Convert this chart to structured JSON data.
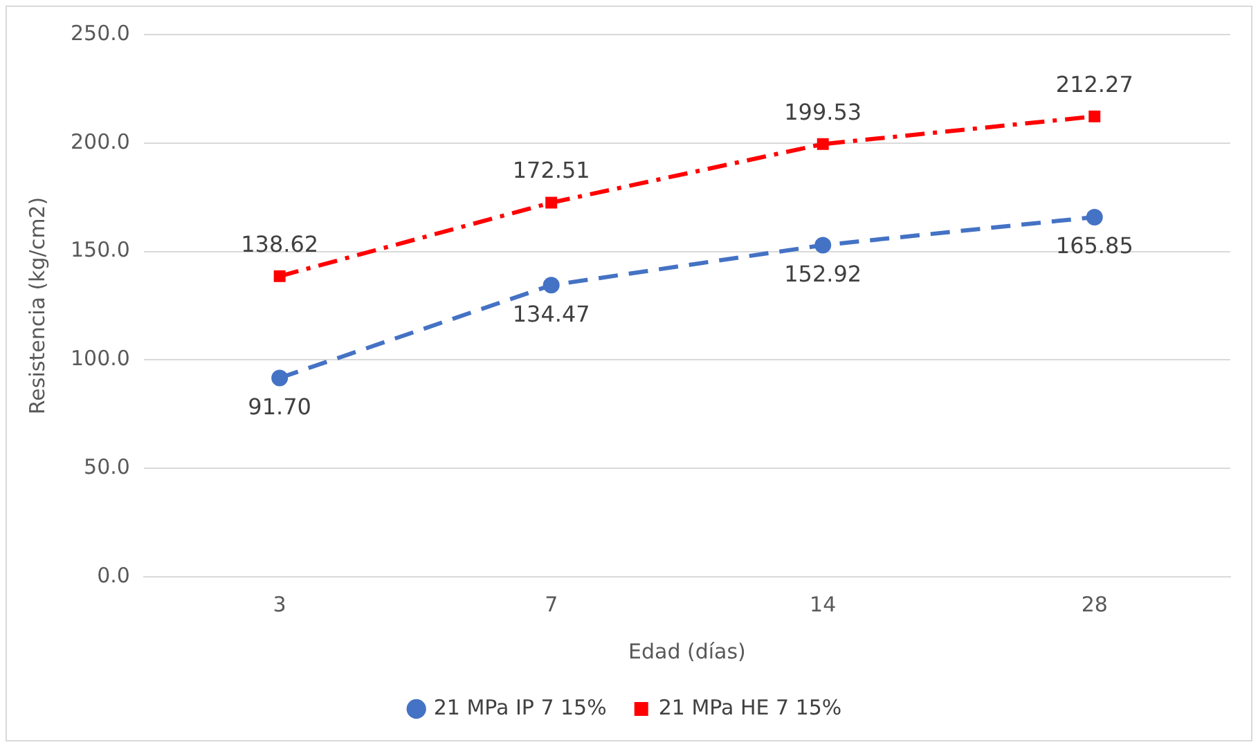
{
  "chart_data": {
    "type": "line",
    "xlabel": "Edad (días)",
    "ylabel": "Resistencia (kg/cm2)",
    "categories": [
      "3",
      "7",
      "14",
      "28"
    ],
    "series": [
      {
        "name": "21 MPa IP 7 15%",
        "color": "#4472c4",
        "marker": "circle",
        "line_style": "dashed",
        "values": [
          91.7,
          134.47,
          152.92,
          165.85
        ],
        "value_labels": [
          "91.70",
          "134.47",
          "152.92",
          "165.85"
        ]
      },
      {
        "name": "21 MPa HE 7 15%",
        "color": "#ff0000",
        "marker": "square",
        "line_style": "dashdot",
        "values": [
          138.62,
          172.51,
          199.53,
          212.27
        ],
        "value_labels": [
          "138.62",
          "172.51",
          "199.53",
          "212.27"
        ]
      }
    ],
    "ylim": [
      0,
      250
    ],
    "yticks": [
      {
        "value": 0,
        "label": "0.0"
      },
      {
        "value": 50,
        "label": "50.0"
      },
      {
        "value": 100,
        "label": "100.0"
      },
      {
        "value": 150,
        "label": "150.0"
      },
      {
        "value": 200,
        "label": "200.0"
      },
      {
        "value": 250,
        "label": "250.0"
      }
    ],
    "grid": "y",
    "legend": "bottom"
  }
}
